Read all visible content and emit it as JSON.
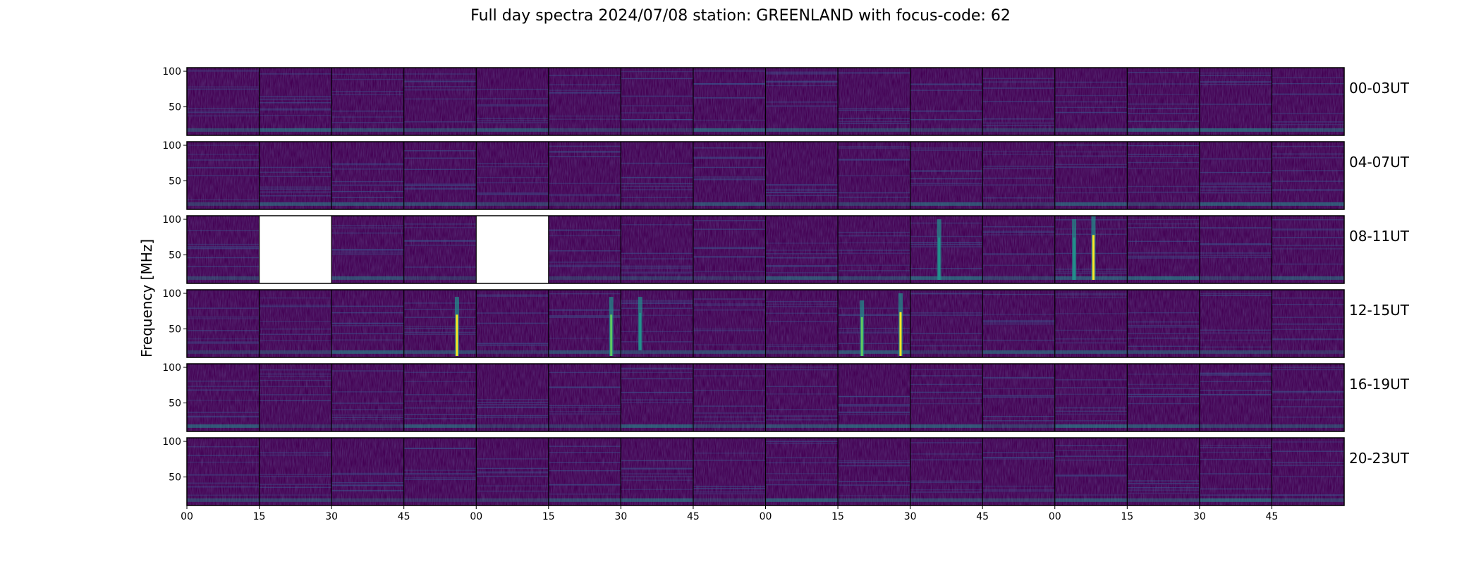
{
  "title": "Full day spectra 2024/07/08 station: GREENLAND with focus-code: 62",
  "colors": {
    "background": "#440154",
    "mid": "#3b528b",
    "teal": "#21918c",
    "green": "#5ec962",
    "yellow": "#fde725"
  },
  "chart_data": {
    "type": "heatmap",
    "title": "Full day spectra 2024/07/08 station: GREENLAND with focus-code: 62",
    "ylabel": "Frequency [MHz]",
    "yticks": [
      50,
      100
    ],
    "ylim": [
      10,
      105
    ],
    "xticks": [
      "00",
      "15",
      "30",
      "45",
      "00",
      "15",
      "30",
      "45",
      "00",
      "15",
      "30",
      "45",
      "00",
      "15",
      "30",
      "45"
    ],
    "colormap": "viridis",
    "panels_per_row": 16,
    "panel_minutes": 15,
    "rows": [
      {
        "label": "00-03UT",
        "missing_panels": [],
        "bursts": []
      },
      {
        "label": "04-07UT",
        "missing_panels": [],
        "bursts": []
      },
      {
        "label": "08-11UT",
        "missing_panels": [
          1,
          4
        ],
        "bursts": [
          {
            "panel": 10,
            "minute": 6,
            "fmin": 15,
            "fmax": 100,
            "intensity": 0.6
          },
          {
            "panel": 12,
            "minute": 4,
            "fmin": 15,
            "fmax": 100,
            "intensity": 0.7
          },
          {
            "panel": 12,
            "minute": 8,
            "fmin": 15,
            "fmax": 105,
            "intensity": 1.0
          }
        ]
      },
      {
        "label": "12-15UT",
        "missing_panels": [],
        "bursts": [
          {
            "panel": 3,
            "minute": 11,
            "fmin": 12,
            "fmax": 95,
            "intensity": 0.95
          },
          {
            "panel": 5,
            "minute": 13,
            "fmin": 12,
            "fmax": 95,
            "intensity": 0.85
          },
          {
            "panel": 6,
            "minute": 4,
            "fmin": 20,
            "fmax": 95,
            "intensity": 0.55
          },
          {
            "panel": 9,
            "minute": 5,
            "fmin": 12,
            "fmax": 90,
            "intensity": 0.9
          },
          {
            "panel": 9,
            "minute": 13,
            "fmin": 12,
            "fmax": 100,
            "intensity": 1.0
          }
        ]
      },
      {
        "label": "16-19UT",
        "missing_panels": [],
        "bursts": []
      },
      {
        "label": "20-23UT",
        "missing_panels": [],
        "bursts": []
      }
    ]
  }
}
